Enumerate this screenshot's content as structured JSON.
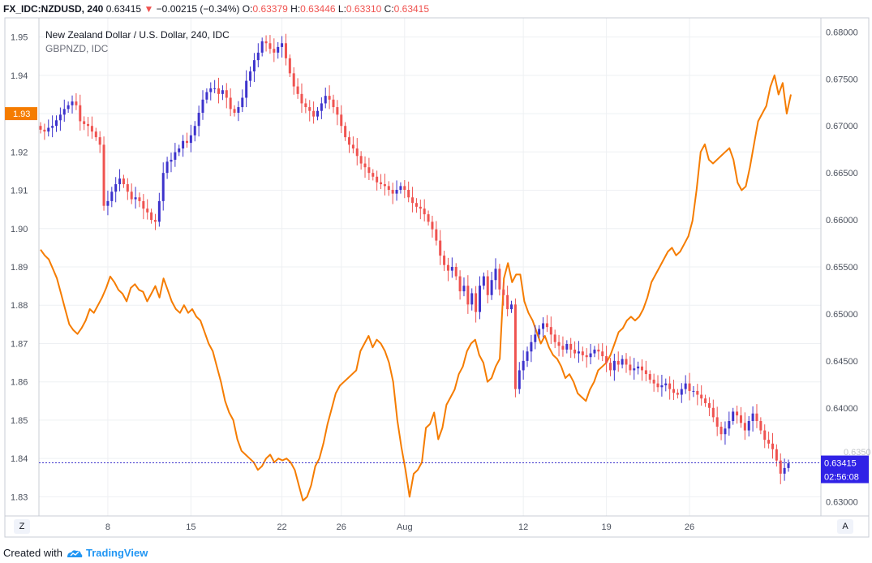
{
  "header": {
    "symbol": "FX_IDC:NZDUSD, 240",
    "last": "0.63415",
    "arrow": "▼",
    "change": "−0.00215 (−0.34%)",
    "o_label": "O:",
    "o_value": "0.63379",
    "h_label": "H:",
    "h_value": "0.63446",
    "l_label": "L:",
    "l_value": "0.63310",
    "c_label": "C:",
    "c_value": "0.63415"
  },
  "legend": {
    "main_title": "New Zealand Dollar / U.S. Dollar, 240, IDC",
    "overlay_title": "GBPNZD, IDC"
  },
  "badges": {
    "left_price": "1.93",
    "right_price": "0.63415",
    "right_timer": "02:56:08",
    "right_label_partial": "0.6350"
  },
  "corners": {
    "left": "Z",
    "right": "A"
  },
  "footer": {
    "created_with": "Created with",
    "brand": "TradingView"
  },
  "colors": {
    "up": "#3d33cc",
    "down": "#ef5350",
    "overlay": "#f57c00",
    "grid": "#eef0f3",
    "price_line": "#3d33cc",
    "badge_blue": "#3022e6"
  },
  "chart_data": {
    "type": "candlestick+line",
    "x_tick_labels": [
      "8",
      "15",
      "22",
      "26",
      "Aug",
      "12",
      "19",
      "26"
    ],
    "left_axis": {
      "series": "GBPNZD",
      "range": [
        1.825,
        1.955
      ],
      "ticks": [
        "1.95",
        "1.94",
        "1.93",
        "1.92",
        "1.91",
        "1.90",
        "1.89",
        "1.88",
        "1.87",
        "1.86",
        "1.85",
        "1.84",
        "1.83"
      ]
    },
    "right_axis": {
      "series": "NZDUSD",
      "range": [
        0.6285,
        0.6815
      ],
      "ticks": [
        "0.68000",
        "0.67500",
        "0.67000",
        "0.66500",
        "0.66000",
        "0.65500",
        "0.65000",
        "0.64500",
        "0.64000",
        "0.63000"
      ]
    },
    "series": [
      {
        "name": "NZDUSD",
        "kind": "candlestick",
        "axis": "right",
        "closes": [
          0.6696,
          0.6694,
          0.6698,
          0.67,
          0.6706,
          0.6712,
          0.6718,
          0.6722,
          0.6726,
          0.6722,
          0.6705,
          0.6702,
          0.67,
          0.6694,
          0.6688,
          0.668,
          0.6615,
          0.662,
          0.663,
          0.6638,
          0.6644,
          0.6638,
          0.663,
          0.6622,
          0.6624,
          0.662,
          0.6612,
          0.6608,
          0.66,
          0.6598,
          0.662,
          0.665,
          0.6662,
          0.6664,
          0.6672,
          0.6676,
          0.6684,
          0.6682,
          0.669,
          0.67,
          0.6714,
          0.6728,
          0.6736,
          0.674,
          0.674,
          0.6734,
          0.6738,
          0.673,
          0.6718,
          0.6714,
          0.672,
          0.673,
          0.6748,
          0.6758,
          0.677,
          0.6778,
          0.679,
          0.6788,
          0.6782,
          0.6778,
          0.6784,
          0.6788,
          0.6772,
          0.6756,
          0.6742,
          0.6734,
          0.6724,
          0.672,
          0.6716,
          0.671,
          0.6716,
          0.6724,
          0.6732,
          0.6728,
          0.672,
          0.6712,
          0.67,
          0.6688,
          0.668,
          0.6676,
          0.6668,
          0.666,
          0.6656,
          0.665,
          0.6646,
          0.664,
          0.6638,
          0.6636,
          0.6632,
          0.6628,
          0.6632,
          0.6636,
          0.6632,
          0.6624,
          0.6618,
          0.6614,
          0.6612,
          0.6606,
          0.6598,
          0.659,
          0.6578,
          0.6562,
          0.6552,
          0.6546,
          0.655,
          0.654,
          0.6524,
          0.653,
          0.651,
          0.6522,
          0.6502,
          0.653,
          0.654,
          0.652,
          0.6536,
          0.6548,
          0.6526,
          0.652,
          0.6505,
          0.651,
          0.642,
          0.644,
          0.645,
          0.646,
          0.647,
          0.6478,
          0.6484,
          0.649,
          0.6486,
          0.6478,
          0.647,
          0.6466,
          0.6462,
          0.6468,
          0.6462,
          0.6458,
          0.646,
          0.6456,
          0.6454,
          0.6458,
          0.6462,
          0.646,
          0.6455,
          0.6448,
          0.644,
          0.645,
          0.6446,
          0.6452,
          0.6446,
          0.644,
          0.6442,
          0.6444,
          0.644,
          0.6436,
          0.643,
          0.6426,
          0.6422,
          0.6424,
          0.6426,
          0.642,
          0.6416,
          0.6414,
          0.642,
          0.6426,
          0.6418,
          0.6418,
          0.6414,
          0.641,
          0.6405,
          0.64,
          0.639,
          0.638,
          0.6372,
          0.6378,
          0.6386,
          0.6396,
          0.6392,
          0.6384,
          0.6376,
          0.6386,
          0.6394,
          0.6386,
          0.6376,
          0.6366,
          0.6362,
          0.6356,
          0.6344,
          0.633,
          0.6336,
          0.6341
        ]
      },
      {
        "name": "GBPNZD",
        "kind": "line",
        "axis": "left",
        "values": [
          1.8945,
          1.893,
          1.892,
          1.8895,
          1.887,
          1.883,
          1.879,
          1.875,
          1.8735,
          1.8725,
          1.874,
          1.876,
          1.879,
          1.878,
          1.88,
          1.882,
          1.8845,
          1.8875,
          1.886,
          1.884,
          1.883,
          1.881,
          1.8845,
          1.8855,
          1.884,
          1.8835,
          1.881,
          1.883,
          1.885,
          1.882,
          1.887,
          1.884,
          1.881,
          1.879,
          1.878,
          1.88,
          1.878,
          1.879,
          1.877,
          1.876,
          1.873,
          1.87,
          1.868,
          1.864,
          1.86,
          1.855,
          1.852,
          1.85,
          1.845,
          1.842,
          1.841,
          1.84,
          1.839,
          1.837,
          1.838,
          1.84,
          1.841,
          1.839,
          1.84,
          1.8395,
          1.84,
          1.839,
          1.837,
          1.833,
          1.829,
          1.83,
          1.833,
          1.838,
          1.84,
          1.844,
          1.849,
          1.853,
          1.857,
          1.859,
          1.86,
          1.861,
          1.862,
          1.863,
          1.868,
          1.87,
          1.872,
          1.869,
          1.871,
          1.87,
          1.868,
          1.865,
          1.86,
          1.85,
          1.843,
          1.837,
          1.83,
          1.836,
          1.837,
          1.839,
          1.848,
          1.849,
          1.852,
          1.845,
          1.848,
          1.854,
          1.856,
          1.858,
          1.862,
          1.864,
          1.868,
          1.87,
          1.871,
          1.867,
          1.865,
          1.86,
          1.861,
          1.864,
          1.866,
          1.887,
          1.891,
          1.886,
          1.888,
          1.888,
          1.881,
          1.878,
          1.876,
          1.873,
          1.87,
          1.872,
          1.869,
          1.867,
          1.866,
          1.864,
          1.861,
          1.862,
          1.86,
          1.857,
          1.856,
          1.855,
          1.858,
          1.86,
          1.863,
          1.864,
          1.865,
          1.867,
          1.87,
          1.873,
          1.874,
          1.876,
          1.877,
          1.876,
          1.877,
          1.879,
          1.882,
          1.886,
          1.888,
          1.89,
          1.892,
          1.894,
          1.895,
          1.893,
          1.894,
          1.896,
          1.898,
          1.902,
          1.91,
          1.92,
          1.922,
          1.918,
          1.917,
          1.918,
          1.919,
          1.92,
          1.921,
          1.918,
          1.912,
          1.91,
          1.911,
          1.916,
          1.922,
          1.928,
          1.93,
          1.932,
          1.937,
          1.94,
          1.935,
          1.938,
          1.93,
          1.935
        ]
      }
    ]
  }
}
